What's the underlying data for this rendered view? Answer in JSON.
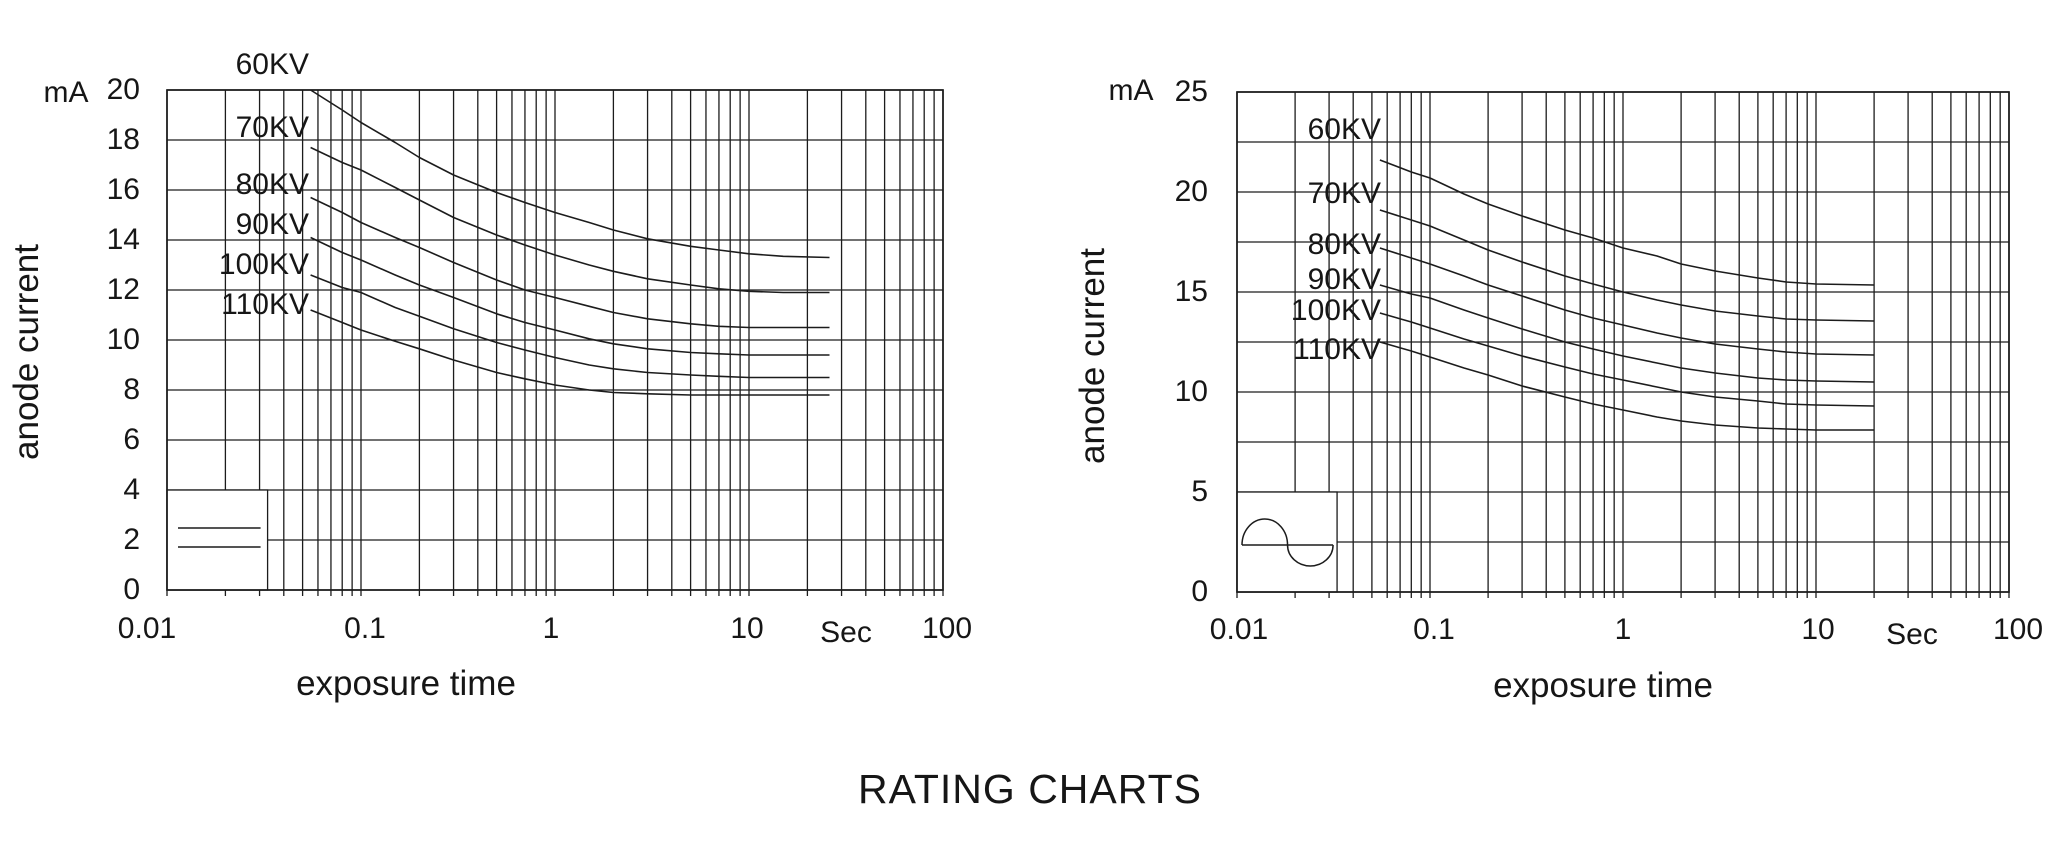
{
  "title": "RATING CHARTS",
  "colors": {
    "ink": "#161616",
    "line": "#1c1c1c",
    "background": "#ffffff"
  },
  "chart_data": [
    {
      "type": "line",
      "id": "constant-potential",
      "x_scale": "log",
      "xlim": [
        0.01,
        100
      ],
      "ylim": [
        0,
        20
      ],
      "xlabel": "exposure time",
      "x_unit": "Sec",
      "ylabel": "anode current",
      "y_unit": "mA",
      "y_grid_step": 2,
      "y_tick_step": 2,
      "x_tick_values": [
        0.01,
        0.1,
        1,
        10,
        100
      ],
      "x_tick_labels": [
        "0.01",
        "0.1",
        "1",
        "10",
        "100"
      ],
      "legend_symbol": "two-horizontal-lines",
      "grid": true,
      "legend_position": "bottom-left",
      "series": [
        {
          "name": "60KV",
          "label_y_mA": 21.0,
          "points": [
            [
              0.055,
              20.0
            ],
            [
              0.08,
              19.2
            ],
            [
              0.1,
              18.7
            ],
            [
              0.15,
              17.9
            ],
            [
              0.2,
              17.3
            ],
            [
              0.3,
              16.6
            ],
            [
              0.5,
              15.9
            ],
            [
              0.7,
              15.5
            ],
            [
              1,
              15.1
            ],
            [
              1.5,
              14.7
            ],
            [
              2,
              14.4
            ],
            [
              3,
              14.05
            ],
            [
              5,
              13.75
            ],
            [
              7,
              13.6
            ],
            [
              10,
              13.45
            ],
            [
              15,
              13.35
            ],
            [
              26,
              13.3
            ]
          ]
        },
        {
          "name": "70KV",
          "label_y_mA": 18.5,
          "points": [
            [
              0.055,
              17.7
            ],
            [
              0.08,
              17.1
            ],
            [
              0.1,
              16.8
            ],
            [
              0.15,
              16.1
            ],
            [
              0.2,
              15.6
            ],
            [
              0.3,
              14.9
            ],
            [
              0.5,
              14.2
            ],
            [
              0.7,
              13.8
            ],
            [
              1,
              13.4
            ],
            [
              1.5,
              13.0
            ],
            [
              2,
              12.75
            ],
            [
              3,
              12.45
            ],
            [
              5,
              12.2
            ],
            [
              7,
              12.05
            ],
            [
              10,
              11.95
            ],
            [
              15,
              11.9
            ],
            [
              26,
              11.9
            ]
          ]
        },
        {
          "name": "80KV",
          "label_y_mA": 16.2,
          "points": [
            [
              0.055,
              15.7
            ],
            [
              0.08,
              15.1
            ],
            [
              0.1,
              14.7
            ],
            [
              0.15,
              14.1
            ],
            [
              0.2,
              13.7
            ],
            [
              0.3,
              13.1
            ],
            [
              0.5,
              12.4
            ],
            [
              0.7,
              12.0
            ],
            [
              1,
              11.7
            ],
            [
              1.5,
              11.35
            ],
            [
              2,
              11.1
            ],
            [
              3,
              10.85
            ],
            [
              5,
              10.65
            ],
            [
              7,
              10.55
            ],
            [
              10,
              10.5
            ],
            [
              15,
              10.5
            ],
            [
              26,
              10.5
            ]
          ]
        },
        {
          "name": "90KV",
          "label_y_mA": 14.6,
          "points": [
            [
              0.055,
              14.1
            ],
            [
              0.08,
              13.5
            ],
            [
              0.1,
              13.2
            ],
            [
              0.15,
              12.6
            ],
            [
              0.2,
              12.2
            ],
            [
              0.3,
              11.7
            ],
            [
              0.5,
              11.05
            ],
            [
              0.7,
              10.7
            ],
            [
              1,
              10.4
            ],
            [
              1.5,
              10.05
            ],
            [
              2,
              9.85
            ],
            [
              3,
              9.65
            ],
            [
              5,
              9.5
            ],
            [
              7,
              9.45
            ],
            [
              10,
              9.4
            ],
            [
              15,
              9.4
            ],
            [
              26,
              9.4
            ]
          ]
        },
        {
          "name": "100KV",
          "label_y_mA": 13.0,
          "points": [
            [
              0.055,
              12.6
            ],
            [
              0.08,
              12.1
            ],
            [
              0.1,
              11.9
            ],
            [
              0.15,
              11.3
            ],
            [
              0.2,
              10.95
            ],
            [
              0.3,
              10.45
            ],
            [
              0.5,
              9.9
            ],
            [
              0.7,
              9.6
            ],
            [
              1,
              9.3
            ],
            [
              1.5,
              9.0
            ],
            [
              2,
              8.85
            ],
            [
              3,
              8.7
            ],
            [
              5,
              8.6
            ],
            [
              7,
              8.55
            ],
            [
              10,
              8.5
            ],
            [
              15,
              8.5
            ],
            [
              26,
              8.5
            ]
          ]
        },
        {
          "name": "110KV",
          "label_y_mA": 11.4,
          "points": [
            [
              0.055,
              11.2
            ],
            [
              0.08,
              10.7
            ],
            [
              0.1,
              10.4
            ],
            [
              0.15,
              9.95
            ],
            [
              0.2,
              9.65
            ],
            [
              0.3,
              9.2
            ],
            [
              0.5,
              8.7
            ],
            [
              0.7,
              8.45
            ],
            [
              1,
              8.2
            ],
            [
              1.5,
              8.0
            ],
            [
              2,
              7.9
            ],
            [
              3,
              7.85
            ],
            [
              5,
              7.8
            ],
            [
              7,
              7.8
            ],
            [
              10,
              7.8
            ],
            [
              15,
              7.8
            ],
            [
              26,
              7.8
            ]
          ]
        }
      ]
    },
    {
      "type": "line",
      "id": "ac-sine",
      "x_scale": "log",
      "xlim": [
        0.01,
        100
      ],
      "ylim": [
        0,
        25
      ],
      "xlabel": "exposure time",
      "x_unit": "Sec",
      "ylabel": "anode current",
      "y_unit": "mA",
      "y_grid_step": 2.5,
      "y_tick_step": 5,
      "x_tick_values": [
        0.01,
        0.1,
        1,
        10,
        100
      ],
      "x_tick_labels": [
        "0.01",
        "0.1",
        "1",
        "10",
        "100"
      ],
      "legend_symbol": "sine-wave",
      "grid": true,
      "legend_position": "bottom-left",
      "series": [
        {
          "name": "60KV",
          "label_y_mA": 23.1,
          "points": [
            [
              0.055,
              21.6
            ],
            [
              0.08,
              21.0
            ],
            [
              0.1,
              20.7
            ],
            [
              0.15,
              19.9
            ],
            [
              0.2,
              19.4
            ],
            [
              0.3,
              18.8
            ],
            [
              0.5,
              18.1
            ],
            [
              0.7,
              17.7
            ],
            [
              1,
              17.2
            ],
            [
              1.5,
              16.8
            ],
            [
              2,
              16.4
            ],
            [
              3,
              16.05
            ],
            [
              5,
              15.7
            ],
            [
              7,
              15.5
            ],
            [
              10,
              15.4
            ],
            [
              20,
              15.35
            ]
          ]
        },
        {
          "name": "70KV",
          "label_y_mA": 19.9,
          "points": [
            [
              0.055,
              19.1
            ],
            [
              0.08,
              18.6
            ],
            [
              0.1,
              18.3
            ],
            [
              0.15,
              17.6
            ],
            [
              0.2,
              17.1
            ],
            [
              0.3,
              16.5
            ],
            [
              0.5,
              15.8
            ],
            [
              0.7,
              15.4
            ],
            [
              1,
              15.0
            ],
            [
              1.5,
              14.6
            ],
            [
              2,
              14.35
            ],
            [
              3,
              14.05
            ],
            [
              5,
              13.8
            ],
            [
              7,
              13.65
            ],
            [
              10,
              13.6
            ],
            [
              20,
              13.55
            ]
          ]
        },
        {
          "name": "80KV",
          "label_y_mA": 17.35,
          "points": [
            [
              0.055,
              17.2
            ],
            [
              0.08,
              16.7
            ],
            [
              0.1,
              16.4
            ],
            [
              0.15,
              15.8
            ],
            [
              0.2,
              15.35
            ],
            [
              0.3,
              14.8
            ],
            [
              0.5,
              14.1
            ],
            [
              0.7,
              13.7
            ],
            [
              1,
              13.35
            ],
            [
              1.5,
              12.95
            ],
            [
              2,
              12.7
            ],
            [
              3,
              12.4
            ],
            [
              5,
              12.15
            ],
            [
              7,
              12.0
            ],
            [
              10,
              11.9
            ],
            [
              20,
              11.85
            ]
          ]
        },
        {
          "name": "90KV",
          "label_y_mA": 15.6,
          "points": [
            [
              0.055,
              15.35
            ],
            [
              0.08,
              14.9
            ],
            [
              0.1,
              14.7
            ],
            [
              0.15,
              14.1
            ],
            [
              0.2,
              13.7
            ],
            [
              0.3,
              13.15
            ],
            [
              0.5,
              12.5
            ],
            [
              0.7,
              12.15
            ],
            [
              1,
              11.8
            ],
            [
              1.5,
              11.45
            ],
            [
              2,
              11.2
            ],
            [
              3,
              10.95
            ],
            [
              5,
              10.7
            ],
            [
              7,
              10.6
            ],
            [
              10,
              10.55
            ],
            [
              20,
              10.5
            ]
          ]
        },
        {
          "name": "100KV",
          "label_y_mA": 14.05,
          "points": [
            [
              0.055,
              13.95
            ],
            [
              0.08,
              13.5
            ],
            [
              0.1,
              13.2
            ],
            [
              0.15,
              12.65
            ],
            [
              0.2,
              12.3
            ],
            [
              0.3,
              11.8
            ],
            [
              0.5,
              11.25
            ],
            [
              0.7,
              10.9
            ],
            [
              1,
              10.6
            ],
            [
              1.5,
              10.25
            ],
            [
              2,
              10.0
            ],
            [
              3,
              9.75
            ],
            [
              5,
              9.55
            ],
            [
              7,
              9.4
            ],
            [
              10,
              9.35
            ],
            [
              20,
              9.3
            ]
          ]
        },
        {
          "name": "110KV",
          "label_y_mA": 12.1,
          "points": [
            [
              0.055,
              12.5
            ],
            [
              0.08,
              12.05
            ],
            [
              0.1,
              11.75
            ],
            [
              0.15,
              11.2
            ],
            [
              0.2,
              10.85
            ],
            [
              0.3,
              10.3
            ],
            [
              0.5,
              9.75
            ],
            [
              0.7,
              9.4
            ],
            [
              1,
              9.1
            ],
            [
              1.5,
              8.75
            ],
            [
              2,
              8.55
            ],
            [
              3,
              8.35
            ],
            [
              5,
              8.2
            ],
            [
              7,
              8.15
            ],
            [
              10,
              8.1
            ],
            [
              20,
              8.1
            ]
          ]
        }
      ]
    }
  ]
}
